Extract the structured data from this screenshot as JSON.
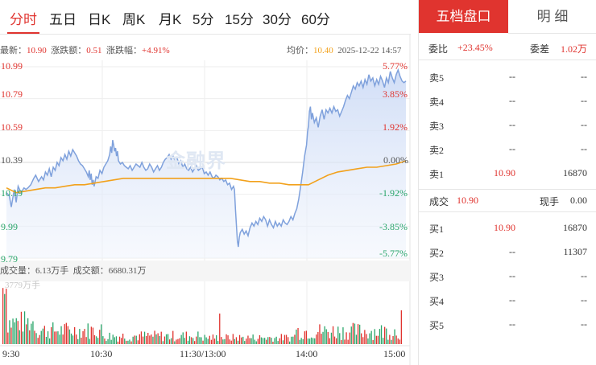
{
  "tabs": {
    "items": [
      "分时",
      "五日",
      "日K",
      "周K",
      "月K",
      "5分",
      "15分",
      "30分",
      "60分"
    ],
    "active": 0
  },
  "quote": {
    "latest_label": "最新：",
    "latest_value": "10.90",
    "change_label": "涨跌额：",
    "change_value": "0.51",
    "pct_label": "涨跌幅：",
    "pct_value": "+4.91%",
    "avg_label": "均价：",
    "avg_value": "10.40",
    "datetime": "2025-12-22 14:57"
  },
  "chart_data": {
    "type": "line",
    "ylim": [
      9.79,
      10.99
    ],
    "price_ticks_left": [
      "10.99",
      "10.79",
      "10.59",
      "10.39",
      "10.19",
      "9.99",
      "9.79"
    ],
    "pct_ticks_right": [
      "5.77%",
      "3.85%",
      "1.92%",
      "0.00%",
      "-1.92%",
      "-3.85%",
      "-5.77%"
    ],
    "x_ticks": [
      "9:30",
      "10:30",
      "11:30/13:00",
      "14:00",
      "15:00"
    ],
    "series": [
      {
        "points": [
          [
            0,
            10.2
          ],
          [
            3,
            10.18
          ],
          [
            5,
            10.11
          ],
          [
            8,
            10.22
          ],
          [
            10,
            10.14
          ],
          [
            12,
            10.24
          ],
          [
            15,
            10.2
          ],
          [
            18,
            10.23
          ],
          [
            20,
            10.22
          ],
          [
            22,
            10.23
          ],
          [
            25,
            10.25
          ],
          [
            28,
            10.29
          ],
          [
            30,
            10.31
          ],
          [
            33,
            10.27
          ],
          [
            36,
            10.3
          ],
          [
            38,
            10.28
          ],
          [
            40,
            10.33
          ],
          [
            42,
            10.31
          ],
          [
            44,
            10.35
          ],
          [
            46,
            10.3
          ],
          [
            48,
            10.36
          ],
          [
            50,
            10.34
          ],
          [
            52,
            10.39
          ],
          [
            54,
            10.37
          ],
          [
            56,
            10.42
          ],
          [
            58,
            10.4
          ],
          [
            60,
            10.44
          ],
          [
            62,
            10.41
          ],
          [
            64,
            10.46
          ],
          [
            66,
            10.43
          ],
          [
            68,
            10.47
          ],
          [
            70,
            10.45
          ],
          [
            72,
            10.43
          ],
          [
            74,
            10.4
          ],
          [
            76,
            10.38
          ],
          [
            78,
            10.37
          ],
          [
            80,
            10.35
          ],
          [
            82,
            10.33
          ],
          [
            84,
            10.3
          ],
          [
            85,
            10.34
          ],
          [
            86,
            10.28
          ],
          [
            87,
            10.32
          ],
          [
            88,
            10.25
          ],
          [
            89,
            10.28
          ],
          [
            90,
            10.24
          ],
          [
            92,
            10.3
          ],
          [
            94,
            10.29
          ],
          [
            96,
            10.34
          ],
          [
            98,
            10.32
          ],
          [
            100,
            10.36
          ],
          [
            102,
            10.38
          ],
          [
            104,
            10.4
          ],
          [
            106,
            10.44
          ],
          [
            107,
            10.49
          ],
          [
            108,
            10.45
          ],
          [
            109,
            10.53
          ],
          [
            110,
            10.5
          ],
          [
            111,
            10.46
          ],
          [
            112,
            10.48
          ],
          [
            113,
            10.43
          ],
          [
            114,
            10.46
          ],
          [
            115,
            10.4
          ],
          [
            117,
            10.38
          ],
          [
            119,
            10.39
          ],
          [
            121,
            10.37
          ],
          [
            123,
            10.36
          ],
          [
            125,
            10.35
          ],
          [
            127,
            10.37
          ],
          [
            129,
            10.34
          ],
          [
            131,
            10.36
          ],
          [
            133,
            10.38
          ],
          [
            135,
            10.37
          ],
          [
            137,
            10.36
          ],
          [
            139,
            10.39
          ],
          [
            141,
            10.36
          ],
          [
            143,
            10.34
          ],
          [
            145,
            10.35
          ],
          [
            147,
            10.38
          ],
          [
            149,
            10.36
          ],
          [
            151,
            10.33
          ],
          [
            153,
            10.35
          ],
          [
            155,
            10.37
          ],
          [
            157,
            10.34
          ],
          [
            159,
            10.36
          ],
          [
            161,
            10.39
          ],
          [
            163,
            10.41
          ],
          [
            165,
            10.42
          ],
          [
            167,
            10.44
          ],
          [
            169,
            10.41
          ],
          [
            171,
            10.43
          ],
          [
            173,
            10.4
          ],
          [
            175,
            10.42
          ],
          [
            177,
            10.38
          ],
          [
            179,
            10.4
          ],
          [
            181,
            10.36
          ],
          [
            183,
            10.38
          ],
          [
            185,
            10.35
          ],
          [
            187,
            10.34
          ],
          [
            189,
            10.36
          ],
          [
            191,
            10.33
          ],
          [
            193,
            10.35
          ],
          [
            195,
            10.37
          ],
          [
            197,
            10.34
          ],
          [
            199,
            10.35
          ],
          [
            201,
            10.36
          ],
          [
            203,
            10.32
          ],
          [
            205,
            10.33
          ],
          [
            207,
            10.31
          ],
          [
            209,
            10.33
          ],
          [
            211,
            10.3
          ],
          [
            213,
            10.29
          ],
          [
            215,
            10.31
          ],
          [
            217,
            10.3
          ],
          [
            219,
            10.28
          ],
          [
            221,
            10.29
          ],
          [
            223,
            10.27
          ],
          [
            225,
            10.28
          ],
          [
            227,
            10.25
          ],
          [
            229,
            10.26
          ],
          [
            231,
            10.22
          ],
          [
            233,
            10.24
          ],
          [
            234,
            10.22
          ],
          [
            235,
            10.1
          ],
          [
            236,
            10.0
          ],
          [
            237,
            9.9
          ],
          [
            238,
            9.86
          ],
          [
            239,
            9.92
          ],
          [
            240,
            9.95
          ],
          [
            242,
            9.97
          ],
          [
            244,
            9.94
          ],
          [
            246,
            9.96
          ],
          [
            248,
            9.93
          ],
          [
            250,
            9.98
          ],
          [
            252,
            10.01
          ],
          [
            254,
            9.99
          ],
          [
            256,
            10.02
          ],
          [
            258,
            10.0
          ],
          [
            260,
            10.04
          ],
          [
            262,
            10.02
          ],
          [
            264,
            10.05
          ],
          [
            266,
            10.03
          ],
          [
            268,
            9.99
          ],
          [
            270,
            10.03
          ],
          [
            272,
            10.0
          ],
          [
            274,
            9.98
          ],
          [
            276,
            10.02
          ],
          [
            278,
            9.99
          ],
          [
            280,
            10.01
          ],
          [
            282,
            9.99
          ],
          [
            284,
            10.03
          ],
          [
            286,
            10.01
          ],
          [
            288,
            10.0
          ],
          [
            290,
            10.02
          ],
          [
            292,
            10.05
          ],
          [
            294,
            10.03
          ],
          [
            296,
            10.07
          ],
          [
            298,
            10.1
          ],
          [
            300,
            10.16
          ],
          [
            302,
            10.24
          ],
          [
            304,
            10.33
          ],
          [
            306,
            10.43
          ],
          [
            308,
            10.5
          ],
          [
            309,
            10.58
          ],
          [
            310,
            10.62
          ],
          [
            311,
            10.71
          ],
          [
            312,
            10.74
          ],
          [
            313,
            10.66
          ],
          [
            314,
            10.7
          ],
          [
            316,
            10.64
          ],
          [
            318,
            10.67
          ],
          [
            320,
            10.61
          ],
          [
            322,
            10.68
          ],
          [
            324,
            10.72
          ],
          [
            326,
            10.66
          ],
          [
            328,
            10.72
          ],
          [
            330,
            10.7
          ],
          [
            332,
            10.73
          ],
          [
            334,
            10.7
          ],
          [
            336,
            10.74
          ],
          [
            338,
            10.71
          ],
          [
            340,
            10.72
          ],
          [
            342,
            10.68
          ],
          [
            344,
            10.71
          ],
          [
            346,
            10.74
          ],
          [
            348,
            10.78
          ],
          [
            350,
            10.81
          ],
          [
            352,
            10.79
          ],
          [
            354,
            10.83
          ],
          [
            356,
            10.87
          ],
          [
            358,
            10.85
          ],
          [
            360,
            10.89
          ],
          [
            362,
            10.87
          ],
          [
            364,
            10.9
          ],
          [
            366,
            10.86
          ],
          [
            368,
            10.91
          ],
          [
            370,
            10.88
          ],
          [
            372,
            10.94
          ],
          [
            374,
            10.9
          ],
          [
            376,
            10.92
          ],
          [
            378,
            10.87
          ],
          [
            380,
            10.91
          ],
          [
            382,
            10.88
          ],
          [
            384,
            10.93
          ],
          [
            386,
            10.9
          ],
          [
            388,
            10.86
          ],
          [
            390,
            10.92
          ],
          [
            392,
            10.89
          ],
          [
            394,
            10.96
          ],
          [
            396,
            10.92
          ],
          [
            398,
            10.89
          ],
          [
            400,
            10.94
          ],
          [
            402,
            10.97
          ],
          [
            404,
            10.93
          ],
          [
            406,
            10.9
          ],
          [
            408,
            10.89
          ],
          [
            410,
            10.9
          ]
        ]
      },
      {
        "points": [
          [
            0,
            10.23
          ],
          [
            10,
            10.2
          ],
          [
            20,
            10.21
          ],
          [
            30,
            10.22
          ],
          [
            40,
            10.23
          ],
          [
            50,
            10.23
          ],
          [
            60,
            10.24
          ],
          [
            70,
            10.25
          ],
          [
            80,
            10.25
          ],
          [
            90,
            10.26
          ],
          [
            100,
            10.27
          ],
          [
            110,
            10.28
          ],
          [
            120,
            10.29
          ],
          [
            130,
            10.29
          ],
          [
            140,
            10.29
          ],
          [
            150,
            10.29
          ],
          [
            160,
            10.29
          ],
          [
            170,
            10.29
          ],
          [
            180,
            10.29
          ],
          [
            190,
            10.29
          ],
          [
            200,
            10.29
          ],
          [
            210,
            10.29
          ],
          [
            220,
            10.29
          ],
          [
            230,
            10.29
          ],
          [
            240,
            10.28
          ],
          [
            250,
            10.27
          ],
          [
            260,
            10.27
          ],
          [
            270,
            10.26
          ],
          [
            280,
            10.26
          ],
          [
            290,
            10.25
          ],
          [
            300,
            10.25
          ],
          [
            310,
            10.25
          ],
          [
            320,
            10.28
          ],
          [
            330,
            10.31
          ],
          [
            340,
            10.33
          ],
          [
            350,
            10.34
          ],
          [
            360,
            10.35
          ],
          [
            370,
            10.36
          ],
          [
            380,
            10.36
          ],
          [
            390,
            10.37
          ],
          [
            400,
            10.38
          ],
          [
            410,
            10.4
          ]
        ]
      }
    ],
    "volume_label": "成交量：6.13万手",
    "amount_label": "成交额：6680.31万",
    "volume_max_label": "3779万手"
  },
  "watermark": "金融界",
  "panel": {
    "tab_active": "五档盘口",
    "tab_inactive": "明 细",
    "weibi_label": "委比",
    "weibi_value": "+23.45%",
    "weicha_label": "委差",
    "weicha_value": "1.02万",
    "sells": [
      {
        "label": "卖5",
        "price": "--",
        "vol": "--"
      },
      {
        "label": "卖4",
        "price": "--",
        "vol": "--"
      },
      {
        "label": "卖3",
        "price": "--",
        "vol": "--"
      },
      {
        "label": "卖2",
        "price": "--",
        "vol": "--"
      },
      {
        "label": "卖1",
        "price": "10.90",
        "vol": "16870"
      }
    ],
    "deal_label": "成交",
    "deal_value": "10.90",
    "now_label": "现手",
    "now_value": "0.00",
    "buys": [
      {
        "label": "买1",
        "price": "10.90",
        "vol": "16870"
      },
      {
        "label": "买2",
        "price": "--",
        "vol": "11307"
      },
      {
        "label": "买3",
        "price": "--",
        "vol": "--"
      },
      {
        "label": "买4",
        "price": "--",
        "vol": "--"
      },
      {
        "label": "买5",
        "price": "--",
        "vol": "--"
      }
    ]
  },
  "colors": {
    "up": "#e0342f",
    "down": "#2aa66a",
    "price_line": "#7fa1dc",
    "avg_line": "#f2a11b"
  }
}
